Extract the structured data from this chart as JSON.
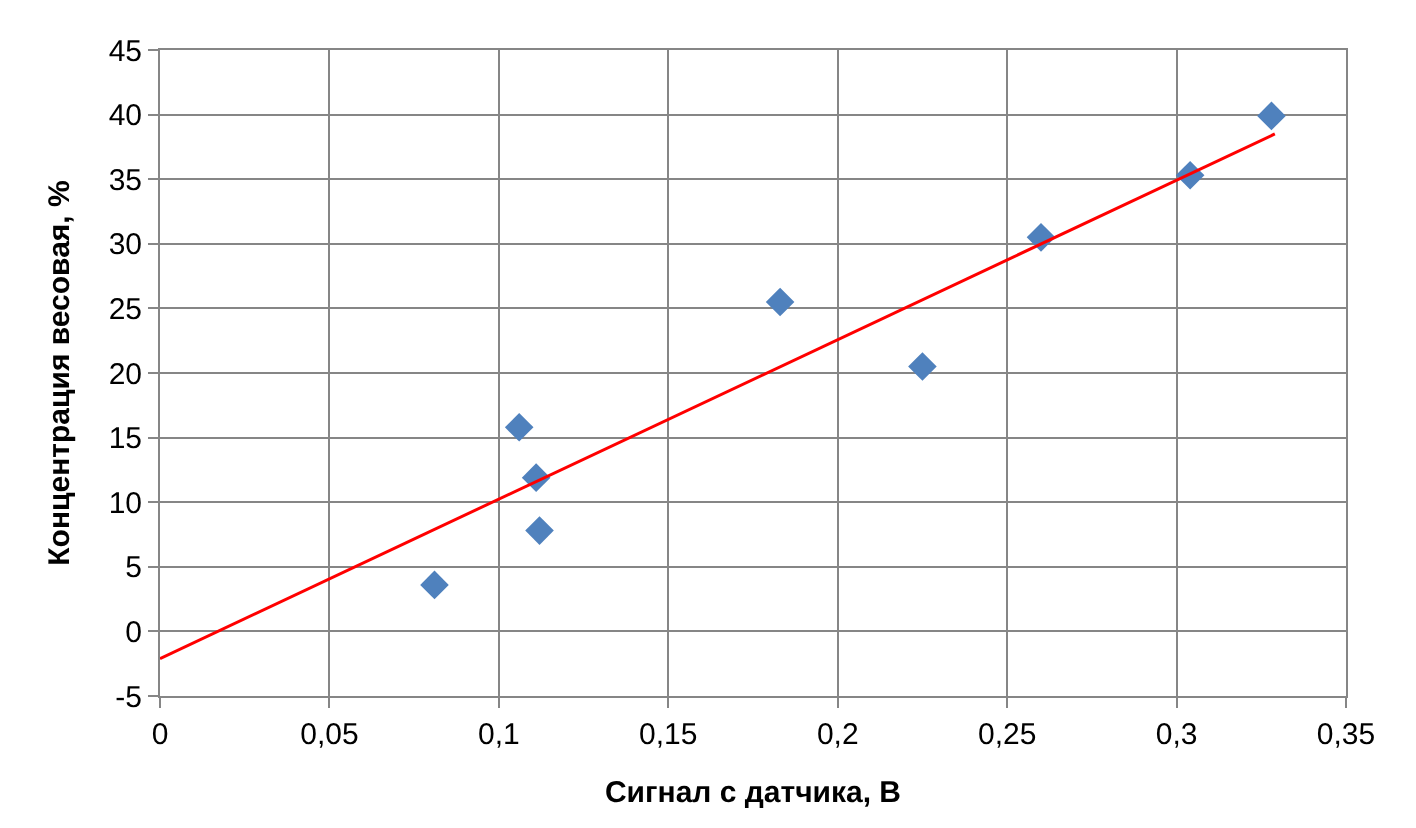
{
  "chart_data": {
    "type": "scatter",
    "xlabel": "Сигнал с датчика, В",
    "ylabel": "Концентрация весовая, %",
    "xlim": [
      0,
      0.35
    ],
    "ylim": [
      -5,
      45
    ],
    "xticks": [
      0,
      {
        "value": 0.05,
        "label": "0,05"
      },
      {
        "value": 0.1,
        "label": "0,1"
      },
      {
        "value": 0.15,
        "label": "0,15"
      },
      {
        "value": 0.2,
        "label": "0,2"
      },
      {
        "value": 0.25,
        "label": "0,25"
      },
      {
        "value": 0.3,
        "label": "0,3"
      },
      {
        "value": 0.35,
        "label": "0,35"
      }
    ],
    "yticks": [
      -5,
      0,
      5,
      10,
      15,
      20,
      25,
      30,
      35,
      40,
      45
    ],
    "grid": true,
    "marker": "diamond",
    "series": [
      {
        "color": "#4f81bd",
        "x": [
          0.081,
          0.106,
          0.111,
          0.112,
          0.183,
          0.225,
          0.26,
          0.304,
          0.328
        ],
        "values": [
          3.6,
          15.8,
          11.9,
          7.8,
          25.5,
          20.5,
          30.5,
          35.3,
          39.9
        ]
      },
      {
        "type": "line",
        "marker": "none",
        "color": "#ff0000",
        "line_style": "solid",
        "x": [
          0,
          0.329
        ],
        "values": [
          -2.1,
          38.5
        ]
      }
    ]
  }
}
